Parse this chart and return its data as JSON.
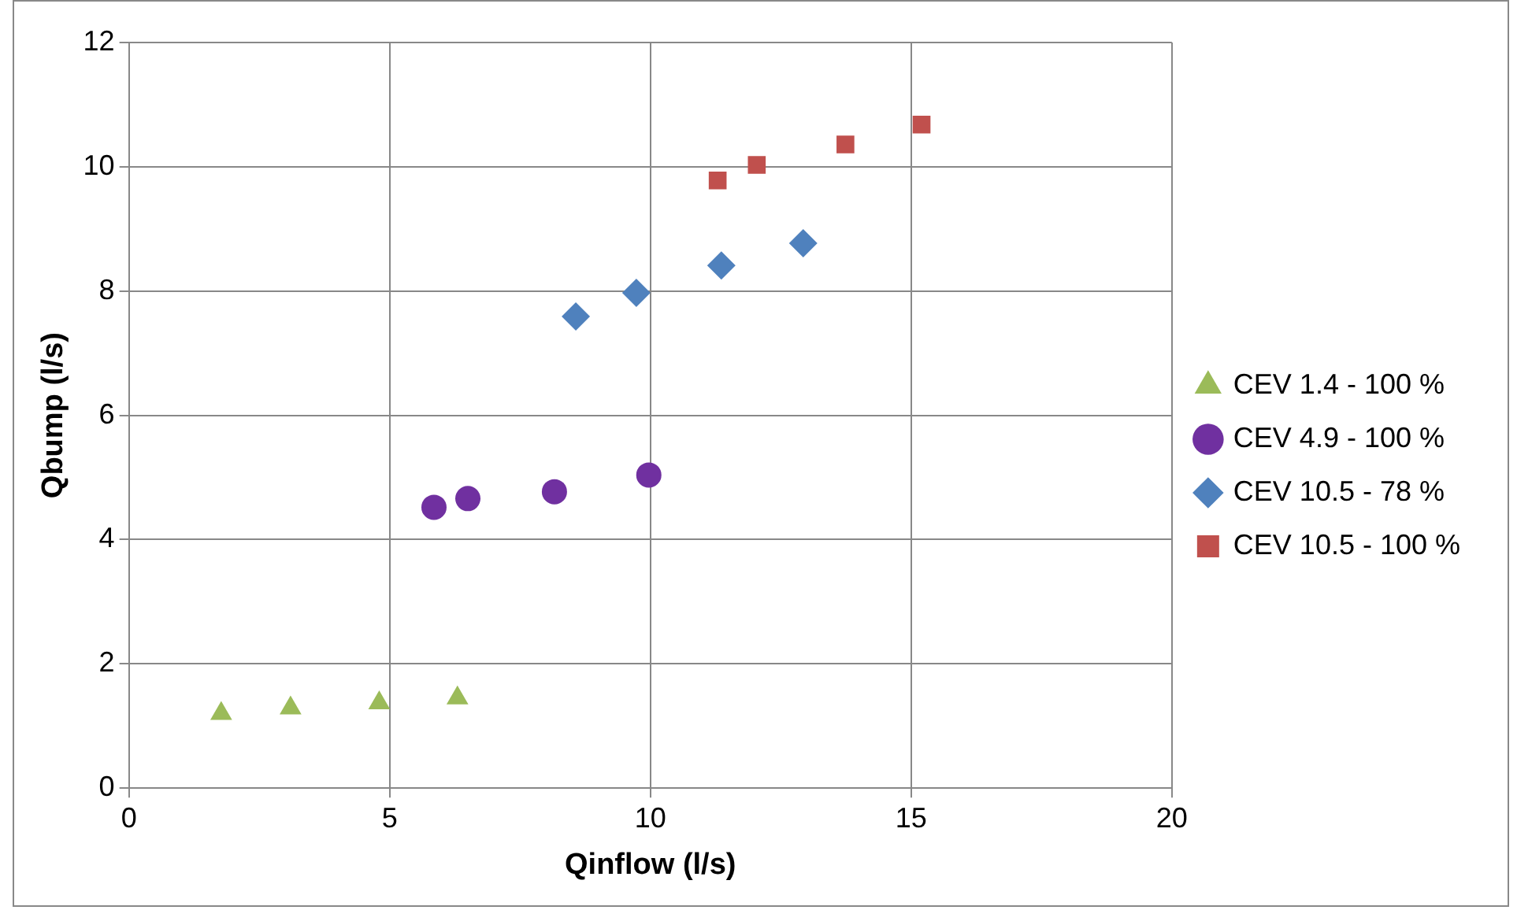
{
  "chart_data": {
    "type": "scatter",
    "xlabel": "Qinflow (l/s)",
    "ylabel": "Qbump (l/s)",
    "xlim": [
      0,
      20
    ],
    "xticks": [
      0,
      5,
      10,
      15,
      20
    ],
    "ylim": [
      0,
      12
    ],
    "yticks": [
      0,
      2,
      4,
      6,
      8,
      10,
      12
    ],
    "grid": true,
    "legend": "right",
    "series": [
      {
        "name": "CEV 1.4 - 100 %",
        "color": "#9bbb59",
        "marker": "triangle",
        "x": [
          1.77,
          3.1,
          4.8,
          6.3
        ],
        "values": [
          1.2,
          1.29,
          1.37,
          1.45
        ]
      },
      {
        "name": "CEV 4.9 - 100 %",
        "color": "#7030a0",
        "marker": "circle",
        "x": [
          5.85,
          6.5,
          8.16,
          9.97
        ],
        "values": [
          4.52,
          4.66,
          4.77,
          5.04
        ]
      },
      {
        "name": "CEV 10.5 - 78 %",
        "color": "#4f81bd",
        "marker": "diamond",
        "x": [
          8.57,
          9.73,
          11.36,
          12.93
        ],
        "values": [
          7.59,
          7.97,
          8.41,
          8.77
        ]
      },
      {
        "name": "CEV 10.5 - 100 %",
        "color": "#c0504d",
        "marker": "square",
        "x": [
          11.29,
          12.04,
          13.74,
          15.2
        ],
        "values": [
          9.78,
          10.03,
          10.36,
          10.68
        ]
      }
    ]
  }
}
